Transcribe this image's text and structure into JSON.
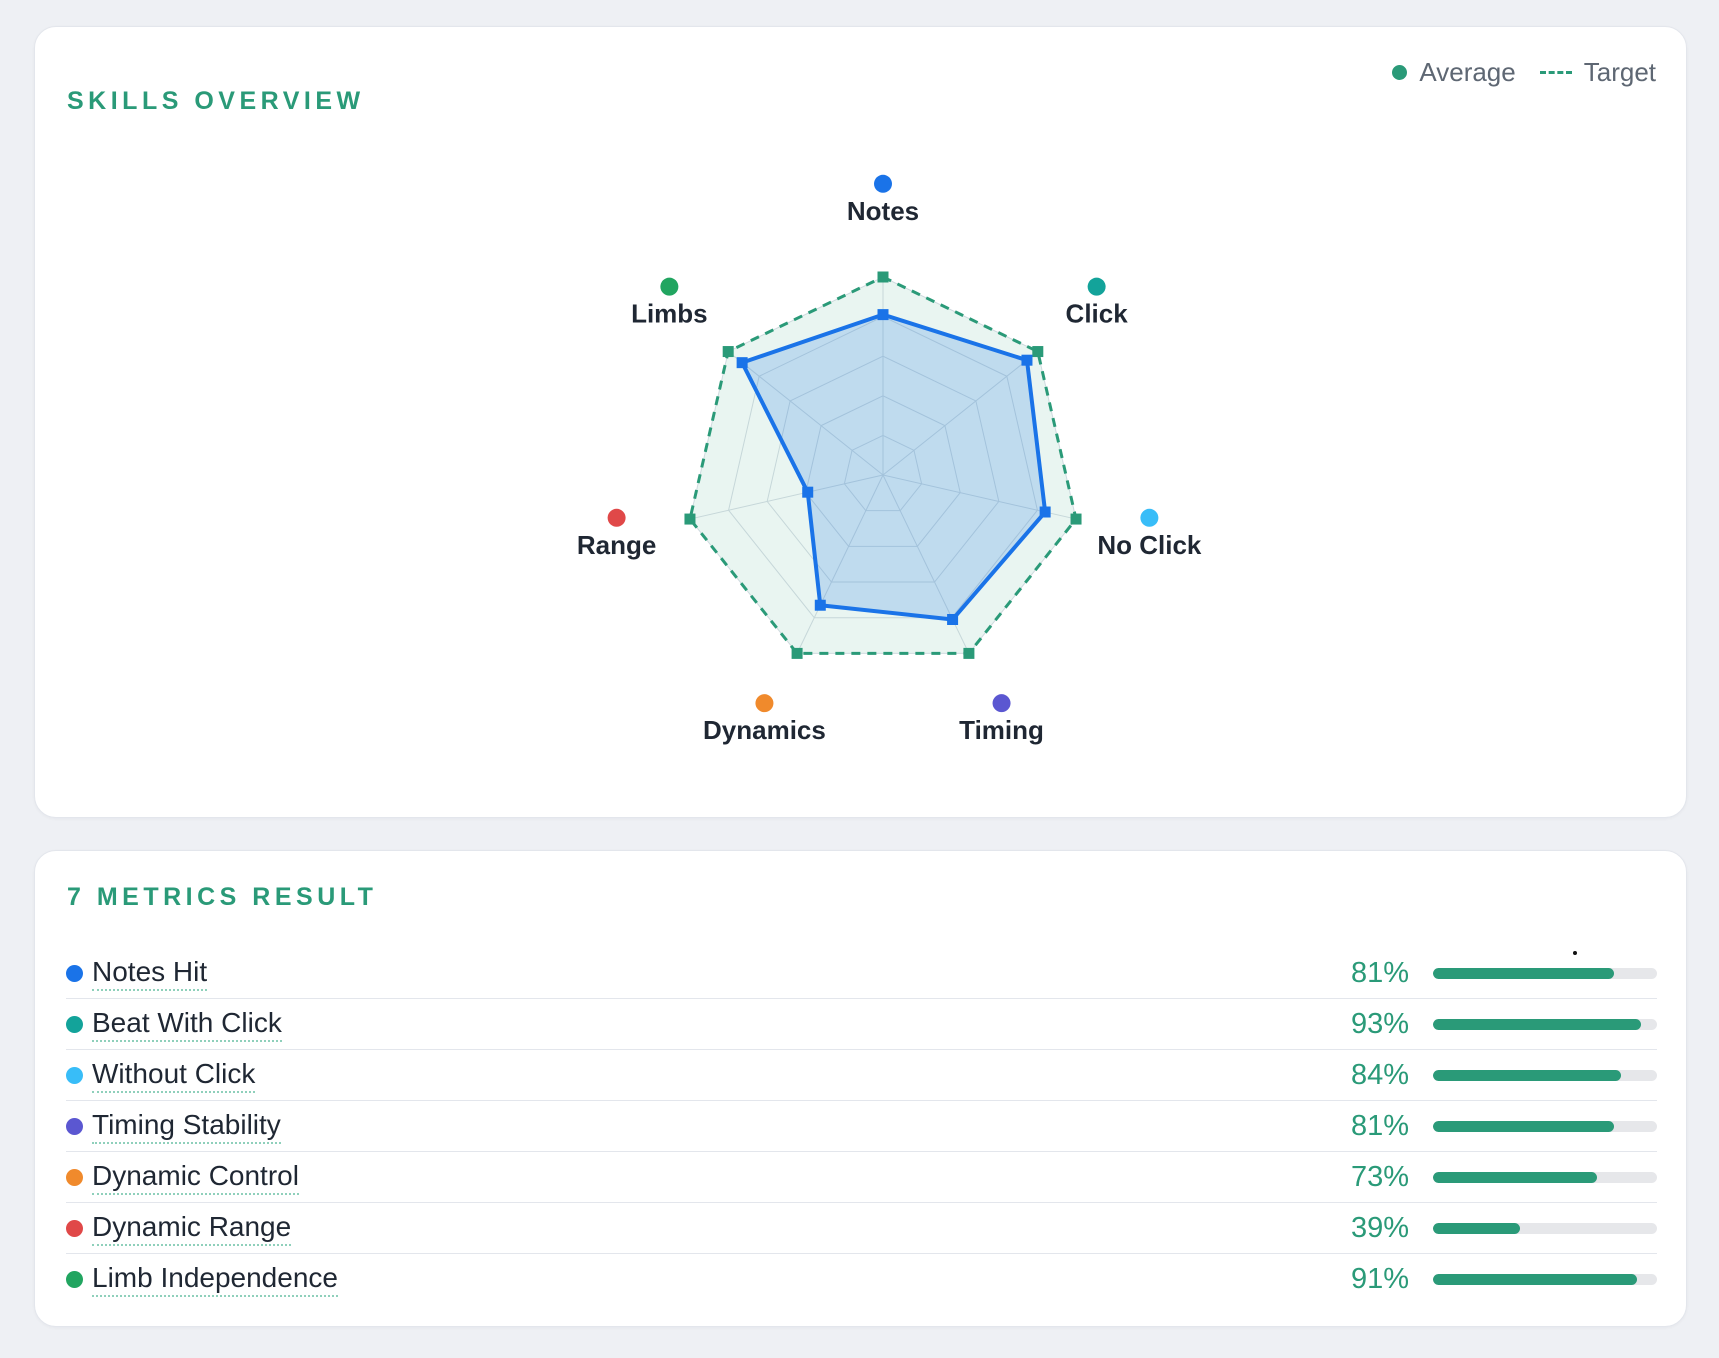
{
  "skills": {
    "title": "SKILLS OVERVIEW",
    "legend": {
      "average_label": "Average",
      "target_label": "Target"
    }
  },
  "chart_data": {
    "type": "radar",
    "axes": [
      {
        "name": "Notes",
        "color": "#1a73e8"
      },
      {
        "name": "Click",
        "color": "#13a39a"
      },
      {
        "name": "No Click",
        "color": "#38bdf8"
      },
      {
        "name": "Timing",
        "color": "#5b57d1"
      },
      {
        "name": "Dynamics",
        "color": "#f08a2c"
      },
      {
        "name": "Range",
        "color": "#e04848"
      },
      {
        "name": "Limbs",
        "color": "#21a560"
      }
    ],
    "max": 100,
    "rings": 5,
    "series": [
      {
        "name": "Average",
        "color": "#1a73e8",
        "values": [
          81,
          93,
          84,
          81,
          73,
          39,
          91
        ]
      },
      {
        "name": "Target",
        "color": "#2a9a78",
        "values": [
          100,
          100,
          100,
          100,
          100,
          100,
          100
        ]
      }
    ]
  },
  "metrics": {
    "title": "7 METRICS RESULT",
    "bar_color": "#2a9a78",
    "rows": [
      {
        "label": "Notes Hit",
        "value": "81%",
        "fraction": 0.81,
        "color": "#1a73e8"
      },
      {
        "label": "Beat With Click",
        "value": "93%",
        "fraction": 0.93,
        "color": "#13a39a"
      },
      {
        "label": "Without Click",
        "value": "84%",
        "fraction": 0.84,
        "color": "#38bdf8"
      },
      {
        "label": "Timing Stability",
        "value": "81%",
        "fraction": 0.81,
        "color": "#5b57d1"
      },
      {
        "label": "Dynamic Control",
        "value": "73%",
        "fraction": 0.73,
        "color": "#f08a2c"
      },
      {
        "label": "Dynamic Range",
        "value": "39%",
        "fraction": 0.39,
        "color": "#e04848"
      },
      {
        "label": "Limb Independence",
        "value": "91%",
        "fraction": 0.91,
        "color": "#21a560"
      }
    ]
  }
}
